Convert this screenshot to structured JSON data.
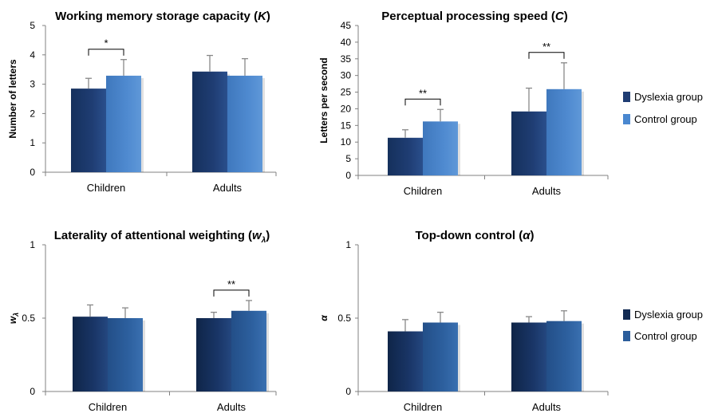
{
  "colors": {
    "dyslexia": "#1f3d73",
    "control_top": "#4f86c6",
    "control_bottom": "#2b5d9b",
    "axis": "#808080"
  },
  "legend_top": [
    {
      "label": "Dyslexia group",
      "color": "#1f3d73"
    },
    {
      "label": "Control group",
      "color": "#4a88d0"
    }
  ],
  "legend_bottom": [
    {
      "label": "Dyslexia group",
      "color": "#132c54"
    },
    {
      "label": "Control group",
      "color": "#2b5d9b"
    }
  ],
  "chart_data": [
    {
      "id": "K",
      "type": "bar",
      "title": "Working memory storage capacity (",
      "title_symbol": "K",
      "title_end": ")",
      "ylabel": "Number of letters",
      "ylim": [
        0,
        5
      ],
      "yticks": [
        "0",
        "1",
        "2",
        "3",
        "4",
        "5"
      ],
      "categories": [
        "Children",
        "Adults"
      ],
      "series": [
        {
          "name": "Dyslexia group",
          "values": [
            2.85,
            3.43
          ],
          "errors": [
            0.35,
            0.55
          ]
        },
        {
          "name": "Control group",
          "values": [
            3.29,
            3.29
          ],
          "errors": [
            0.55,
            0.58
          ]
        }
      ],
      "significance": [
        {
          "category": "Children",
          "label": "*"
        }
      ]
    },
    {
      "id": "C",
      "type": "bar",
      "title": "Perceptual processing speed (",
      "title_symbol": "C",
      "title_end": ")",
      "ylabel": "Letters per second",
      "ylim": [
        0,
        45
      ],
      "yticks": [
        "0",
        "5",
        "10",
        "15",
        "20",
        "25",
        "30",
        "35",
        "40",
        "45"
      ],
      "categories": [
        "Children",
        "Adults"
      ],
      "series": [
        {
          "name": "Dyslexia group",
          "values": [
            11.3,
            19.2
          ],
          "errors": [
            2.4,
            7.0
          ]
        },
        {
          "name": "Control group",
          "values": [
            16.2,
            25.9
          ],
          "errors": [
            3.6,
            7.9
          ]
        }
      ],
      "significance": [
        {
          "category": "Children",
          "label": "**"
        },
        {
          "category": "Adults",
          "label": "**"
        }
      ]
    },
    {
      "id": "w",
      "type": "bar",
      "title": "Laterality of attentional weighting (",
      "title_symbol": "wλ",
      "title_end": ")",
      "ylabel": "wλ",
      "ylim": [
        0,
        1
      ],
      "yticks": [
        "0",
        "0.5",
        "1"
      ],
      "categories": [
        "Children",
        "Adults"
      ],
      "series": [
        {
          "name": "Dyslexia group",
          "values": [
            0.51,
            0.5
          ],
          "errors": [
            0.08,
            0.04
          ]
        },
        {
          "name": "Control group",
          "values": [
            0.5,
            0.55
          ],
          "errors": [
            0.07,
            0.07
          ]
        }
      ],
      "significance": [
        {
          "category": "Adults",
          "label": "**"
        }
      ]
    },
    {
      "id": "alpha",
      "type": "bar",
      "title": "Top-down control (",
      "title_symbol": "α",
      "title_end": ")",
      "ylabel": "α",
      "ylim": [
        0,
        1
      ],
      "yticks": [
        "0",
        "0.5",
        "1"
      ],
      "categories": [
        "Children",
        "Adults"
      ],
      "series": [
        {
          "name": "Dyslexia group",
          "values": [
            0.41,
            0.47
          ],
          "errors": [
            0.08,
            0.04
          ]
        },
        {
          "name": "Control group",
          "values": [
            0.47,
            0.48
          ],
          "errors": [
            0.07,
            0.07
          ]
        }
      ],
      "significance": []
    }
  ]
}
